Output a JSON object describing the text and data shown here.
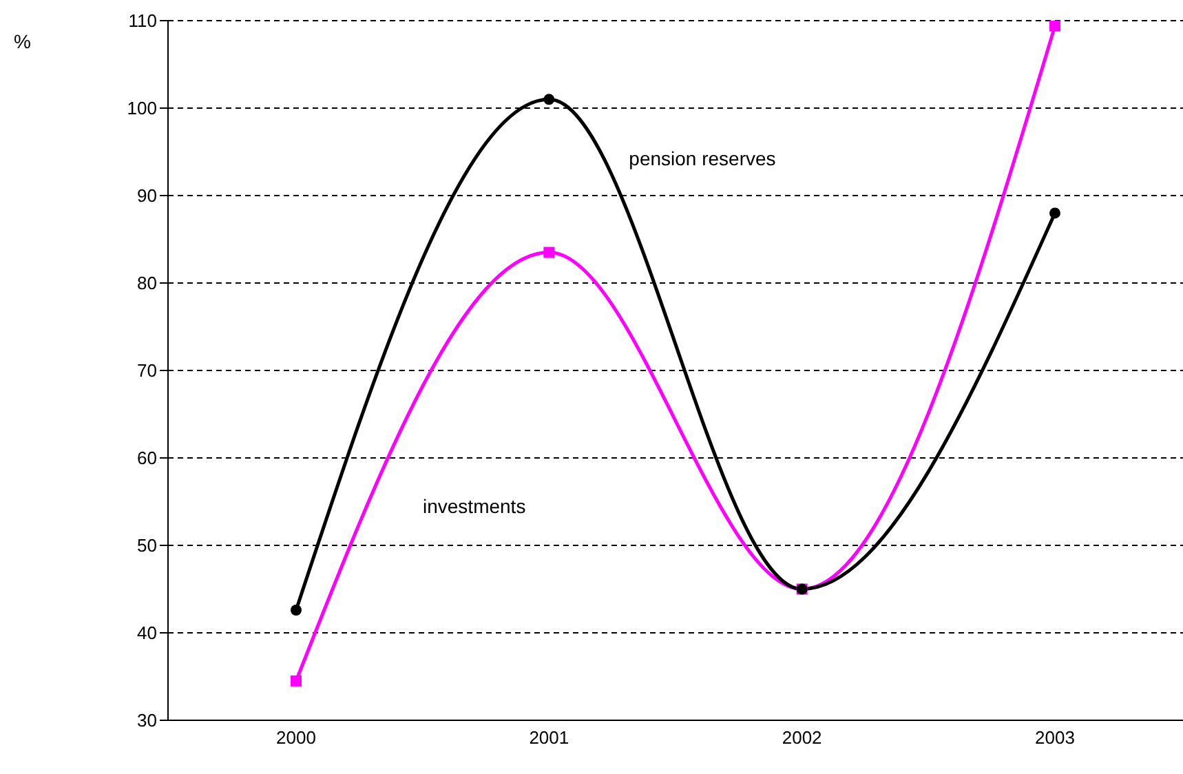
{
  "chart_data": {
    "type": "line",
    "ylabel": "%",
    "categories": [
      "2000",
      "2001",
      "2002",
      "2003"
    ],
    "series": [
      {
        "name": "pension reserves",
        "color": "#000000",
        "marker": "circle",
        "values": [
          42.6,
          101,
          45,
          88
        ]
      },
      {
        "name": "investments",
        "color": "#ff00ff",
        "marker": "square",
        "values": [
          34.5,
          83.5,
          45,
          109.4
        ]
      }
    ],
    "ylim": [
      30,
      110
    ],
    "yticks": [
      30,
      40,
      50,
      60,
      70,
      80,
      90,
      100,
      110
    ],
    "grid": "y",
    "legend": false,
    "line_style": "solid"
  }
}
